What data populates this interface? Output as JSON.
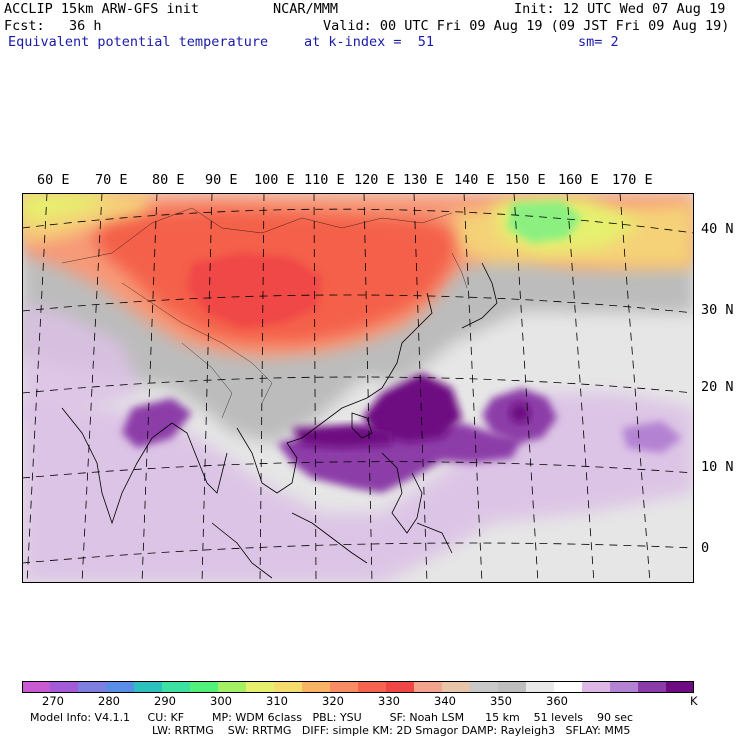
{
  "header": {
    "line1_left": "ACCLIP 15km ARW-GFS init",
    "line1_center": "NCAR/MMM",
    "line1_right": "Init: 12 UTC Wed 07 Aug 19",
    "line2_left": "Fcst:   36 h",
    "line2_right": "Valid: 00 UTC Fri 09 Aug 19 (09 JST Fri 09 Aug 19)",
    "line3_left": "Equivalent potential temperature",
    "line3_center": "at k-index =  51",
    "line3_right": "sm= 2"
  },
  "map": {
    "lon_labels": [
      "60 E",
      "70 E",
      "80 E",
      "90 E",
      "100 E",
      "110 E",
      "120 E",
      "130 E",
      "140 E",
      "150 E",
      "160 E",
      "170 E"
    ],
    "lat_labels": [
      "40 N",
      "30 N",
      "20 N",
      "10 N",
      "0"
    ],
    "field": "Equivalent potential temperature"
  },
  "colorbar": {
    "unit": "K",
    "tick_labels": [
      "270",
      "280",
      "290",
      "300",
      "310",
      "320",
      "330",
      "340",
      "350",
      "360"
    ],
    "colors": [
      "#c85ad2",
      "#a55ad8",
      "#7f7fe0",
      "#5a8ee6",
      "#2ebfbf",
      "#3ce0a0",
      "#50f07a",
      "#a4f064",
      "#e6f06e",
      "#f5dc6e",
      "#f8b464",
      "#f88c64",
      "#f56450",
      "#f04646",
      "#f3a48c",
      "#e8c4a8",
      "#c8c8c8",
      "#bebebe",
      "#e8e8e8",
      "#ffffff",
      "#ddb8e6",
      "#b482d2",
      "#8c3ca8",
      "#6e0a82"
    ]
  },
  "footer": {
    "line1": "Model Info: V4.1.1     CU: KF        MP: WDM 6class   PBL: YSU        SF: Noah LSM      15 km    51 levels    90 sec",
    "line2": "LW: RRTMG    SW: RRTMG   DIFF: simple KM: 2D Smagor DAMP: Rayleigh3   SFLAY: MM5"
  }
}
